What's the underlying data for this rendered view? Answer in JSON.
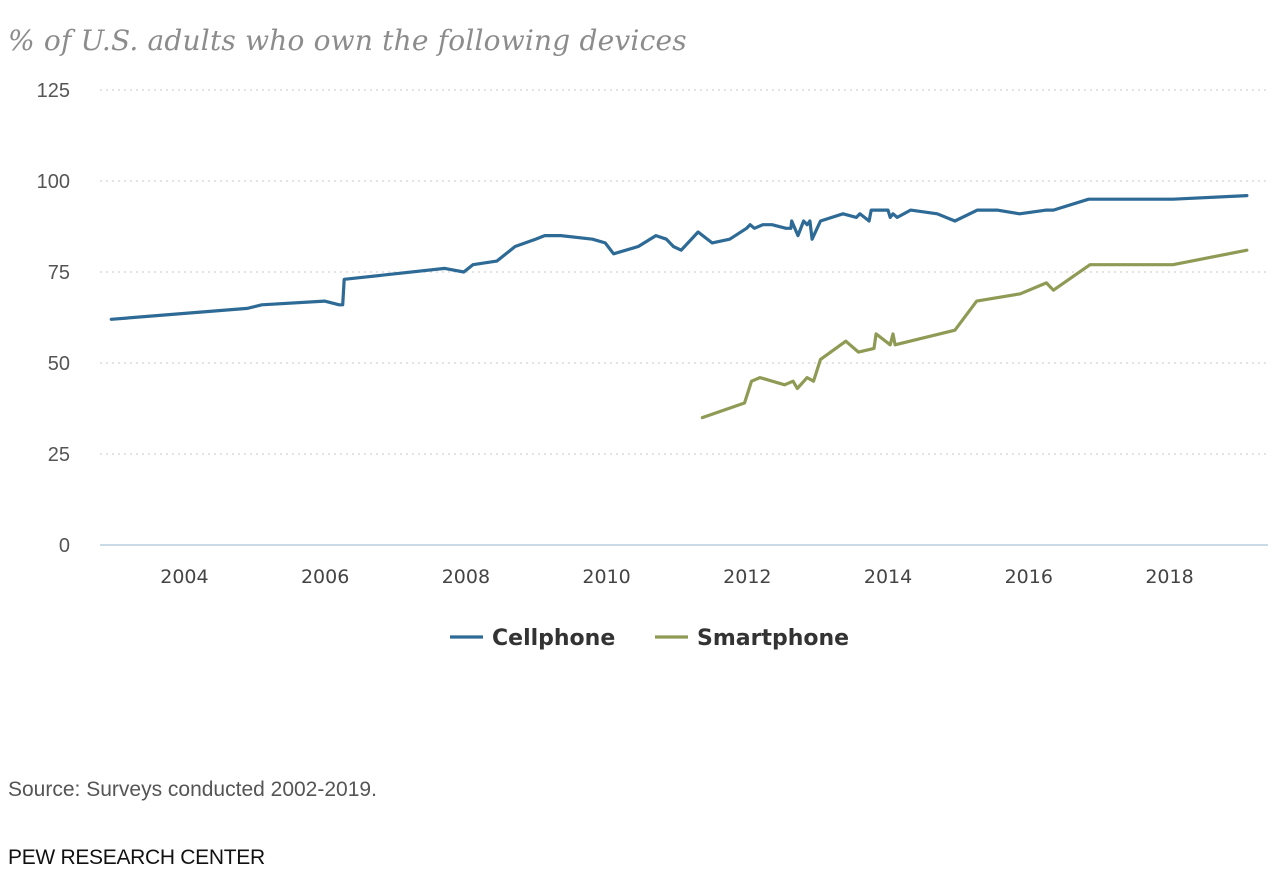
{
  "chart_data": {
    "type": "line",
    "title": "% of U.S. adults who own the following devices",
    "xlabel": "",
    "ylabel": "",
    "ylim": [
      0,
      125
    ],
    "yticks": [
      0,
      25,
      50,
      75,
      100,
      125
    ],
    "xlim": [
      2002.8,
      2019.4
    ],
    "xticks": [
      2004,
      2006,
      2008,
      2010,
      2012,
      2014,
      2016,
      2018
    ],
    "grid": "horizontal dotted",
    "legend": "bottom-center",
    "series": [
      {
        "name": "Cellphone",
        "color": "#2e6a96",
        "points": [
          [
            2002.96,
            62
          ],
          [
            2004.89,
            65
          ],
          [
            2005.1,
            66
          ],
          [
            2005.99,
            67
          ],
          [
            2006.2,
            66
          ],
          [
            2006.25,
            66
          ],
          [
            2006.27,
            73
          ],
          [
            2007.7,
            76
          ],
          [
            2007.97,
            75
          ],
          [
            2008.1,
            77
          ],
          [
            2008.44,
            78
          ],
          [
            2008.7,
            82
          ],
          [
            2008.99,
            84
          ],
          [
            2009.12,
            85
          ],
          [
            2009.35,
            85
          ],
          [
            2009.8,
            84
          ],
          [
            2009.98,
            83
          ],
          [
            2010.1,
            80
          ],
          [
            2010.45,
            82
          ],
          [
            2010.7,
            85
          ],
          [
            2010.85,
            84
          ],
          [
            2010.95,
            82
          ],
          [
            2011.06,
            81
          ],
          [
            2011.3,
            86
          ],
          [
            2011.5,
            83
          ],
          [
            2011.75,
            84
          ],
          [
            2011.99,
            87
          ],
          [
            2012.04,
            88
          ],
          [
            2012.1,
            87
          ],
          [
            2012.22,
            88
          ],
          [
            2012.35,
            88
          ],
          [
            2012.55,
            87
          ],
          [
            2012.62,
            87
          ],
          [
            2012.63,
            89
          ],
          [
            2012.72,
            85
          ],
          [
            2012.8,
            89
          ],
          [
            2012.85,
            88
          ],
          [
            2012.89,
            89
          ],
          [
            2012.92,
            84
          ],
          [
            2013.04,
            89
          ],
          [
            2013.36,
            91
          ],
          [
            2013.55,
            90
          ],
          [
            2013.6,
            91
          ],
          [
            2013.73,
            89
          ],
          [
            2013.76,
            92
          ],
          [
            2014.0,
            92
          ],
          [
            2014.03,
            90
          ],
          [
            2014.07,
            91
          ],
          [
            2014.13,
            90
          ],
          [
            2014.32,
            92
          ],
          [
            2014.7,
            91
          ],
          [
            2014.95,
            89
          ],
          [
            2015.27,
            92
          ],
          [
            2015.55,
            92
          ],
          [
            2015.87,
            91
          ],
          [
            2016.25,
            92
          ],
          [
            2016.35,
            92
          ],
          [
            2016.85,
            95
          ],
          [
            2018.05,
            95
          ],
          [
            2019.1,
            96
          ]
        ]
      },
      {
        "name": "Smartphone",
        "color": "#8f9b55",
        "points": [
          [
            2011.36,
            35
          ],
          [
            2011.96,
            39
          ],
          [
            2012.06,
            45
          ],
          [
            2012.18,
            46
          ],
          [
            2012.53,
            44
          ],
          [
            2012.65,
            45
          ],
          [
            2012.71,
            43
          ],
          [
            2012.85,
            46
          ],
          [
            2012.94,
            45
          ],
          [
            2013.04,
            51
          ],
          [
            2013.4,
            56
          ],
          [
            2013.58,
            53
          ],
          [
            2013.8,
            54
          ],
          [
            2013.83,
            58
          ],
          [
            2014.03,
            55
          ],
          [
            2014.07,
            58
          ],
          [
            2014.1,
            55
          ],
          [
            2014.95,
            59
          ],
          [
            2015.26,
            67
          ],
          [
            2015.88,
            69
          ],
          [
            2016.25,
            72
          ],
          [
            2016.35,
            70
          ],
          [
            2016.87,
            77
          ],
          [
            2018.05,
            77
          ],
          [
            2019.1,
            81
          ]
        ]
      }
    ]
  },
  "source": "Source: Surveys conducted 2002-2019.",
  "credit": "PEW RESEARCH CENTER"
}
